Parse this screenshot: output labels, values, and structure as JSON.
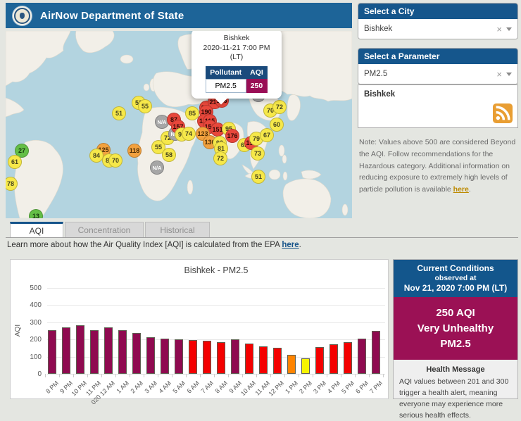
{
  "header": {
    "title": "AirNow Department of State"
  },
  "map": {
    "popup": {
      "city": "Bishkek",
      "datetime": "2020-11-21 7:00 PM",
      "tz": "(LT)",
      "col_pollutant": "Pollutant",
      "col_aqi": "AQI",
      "pollutant": "PM2.5",
      "aqi": "250"
    },
    "markers": [
      {
        "x": 161,
        "y": 117,
        "value": "51",
        "cat": "yellow"
      },
      {
        "x": 189,
        "y": 102,
        "value": "52",
        "cat": "yellow"
      },
      {
        "x": 198,
        "y": 107,
        "value": "55",
        "cat": "yellow"
      },
      {
        "x": 222,
        "y": 129,
        "value": "N/A",
        "cat": "na"
      },
      {
        "x": 239,
        "y": 126,
        "value": "87",
        "cat": "red"
      },
      {
        "x": 23,
        "y": 170,
        "value": "27",
        "cat": "green"
      },
      {
        "x": 13,
        "y": 186,
        "value": "61",
        "cat": "yellow"
      },
      {
        "x": 7,
        "y": 217,
        "value": "78",
        "cat": "yellow"
      },
      {
        "x": 43,
        "y": 263,
        "value": "13",
        "cat": "green"
      },
      {
        "x": 139,
        "y": 169,
        "value": "125",
        "cat": "orange"
      },
      {
        "x": 129,
        "y": 177,
        "value": "84",
        "cat": "yellow"
      },
      {
        "x": 147,
        "y": 184,
        "value": "89",
        "cat": "yellow"
      },
      {
        "x": 156,
        "y": 184,
        "value": "70",
        "cat": "yellow"
      },
      {
        "x": 183,
        "y": 170,
        "value": "118",
        "cat": "orange"
      },
      {
        "x": 217,
        "y": 165,
        "value": "55",
        "cat": "yellow"
      },
      {
        "x": 230,
        "y": 152,
        "value": "72",
        "cat": "yellow"
      },
      {
        "x": 241,
        "y": 146,
        "value": "N/A",
        "cat": "na"
      },
      {
        "x": 232,
        "y": 176,
        "value": "58",
        "cat": "yellow"
      },
      {
        "x": 215,
        "y": 194,
        "value": "N/A",
        "cat": "na"
      },
      {
        "x": 265,
        "y": 117,
        "value": "85",
        "cat": "yellow"
      },
      {
        "x": 245,
        "y": 136,
        "value": "157",
        "cat": "red"
      },
      {
        "x": 250,
        "y": 147,
        "value": "97",
        "cat": "yellow"
      },
      {
        "x": 260,
        "y": 146,
        "value": "74",
        "cat": "yellow"
      },
      {
        "x": 285,
        "y": 109,
        "value": "162",
        "cat": "red"
      },
      {
        "x": 297,
        "y": 101,
        "value": "215",
        "cat": "red"
      },
      {
        "x": 307,
        "y": 99,
        "value": "156",
        "cat": "red"
      },
      {
        "x": 285,
        "y": 115,
        "value": "190",
        "cat": "red"
      },
      {
        "x": 282,
        "y": 128,
        "value": "111",
        "cat": "red"
      },
      {
        "x": 290,
        "y": 128,
        "value": "115",
        "cat": "red"
      },
      {
        "x": 290,
        "y": 136,
        "value": "150",
        "cat": "red"
      },
      {
        "x": 301,
        "y": 140,
        "value": "151",
        "cat": "red"
      },
      {
        "x": 317,
        "y": 139,
        "value": "95",
        "cat": "yellow"
      },
      {
        "x": 322,
        "y": 149,
        "value": "176",
        "cat": "red"
      },
      {
        "x": 280,
        "y": 146,
        "value": "123",
        "cat": "orange"
      },
      {
        "x": 290,
        "y": 158,
        "value": "136",
        "cat": "orange"
      },
      {
        "x": 304,
        "y": 159,
        "value": "93",
        "cat": "yellow"
      },
      {
        "x": 306,
        "y": 167,
        "value": "81",
        "cat": "yellow"
      },
      {
        "x": 305,
        "y": 181,
        "value": "72",
        "cat": "yellow"
      },
      {
        "x": 339,
        "y": 162,
        "value": "61",
        "cat": "yellow"
      },
      {
        "x": 349,
        "y": 159,
        "value": "158",
        "cat": "red"
      },
      {
        "x": 356,
        "y": 153,
        "value": "79",
        "cat": "yellow"
      },
      {
        "x": 358,
        "y": 174,
        "value": "73",
        "cat": "yellow"
      },
      {
        "x": 359,
        "y": 91,
        "value": "N/A",
        "cat": "na"
      },
      {
        "x": 376,
        "y": 113,
        "value": "70",
        "cat": "yellow"
      },
      {
        "x": 389,
        "y": 108,
        "value": "72",
        "cat": "yellow"
      },
      {
        "x": 385,
        "y": 133,
        "value": "60",
        "cat": "yellow"
      },
      {
        "x": 371,
        "y": 148,
        "value": "67",
        "cat": "yellow"
      },
      {
        "x": 359,
        "y": 207,
        "value": "51",
        "cat": "yellow"
      }
    ]
  },
  "marker_palette": {
    "green": {
      "bg": "#64BE46",
      "fg": "#173A0E"
    },
    "yellow": {
      "bg": "#F6E84A",
      "fg": "#45431f"
    },
    "orange": {
      "bg": "#F2A13E",
      "fg": "#4a2d05"
    },
    "red": {
      "bg": "#E8473B",
      "fg": "#330a06"
    },
    "na": {
      "bg": "#A6A6A6",
      "fg": "#FFFFFF"
    }
  },
  "sidebar": {
    "city_panel": {
      "label": "Select a City",
      "value": "Bishkek",
      "clear": "×"
    },
    "parameter_panel": {
      "label": "Select a Parameter",
      "value": "PM2.5",
      "clear": "×"
    },
    "feed_box": {
      "title": "Bishkek"
    },
    "note": {
      "text": "Note: Values above 500 are considered Beyond the AQI. Follow recommendations for the Hazardous category. Additional information on reducing exposure to extremely high levels of particle pollution is available ",
      "link": "here",
      "suffix": "."
    }
  },
  "tabs": [
    {
      "label": "AQI",
      "active": true
    },
    {
      "label": "Concentration",
      "active": false
    },
    {
      "label": "Historical",
      "active": false
    }
  ],
  "learn_more": {
    "prefix": "Learn more about how the Air Quality Index [AQI] is calculated from the EPA ",
    "link": "here",
    "suffix": "."
  },
  "chart_data": {
    "type": "bar",
    "title": "Bishkek - PM2.5",
    "xlabel": "",
    "ylabel": "AQI",
    "ylim": [
      0,
      500
    ],
    "yticks": [
      0,
      100,
      200,
      300,
      400,
      500
    ],
    "grid": true,
    "categories": [
      "8 PM",
      "9 PM",
      "10 PM",
      "11 PM",
      "020 12 AM",
      "1 AM",
      "2 AM",
      "3 AM",
      "4 AM",
      "5 AM",
      "6 AM",
      "7 AM",
      "8 AM",
      "9 AM",
      "10 AM",
      "11 AM",
      "12 PM",
      "1 PM",
      "2 PM",
      "3 PM",
      "4 PM",
      "5 PM",
      "6 PM",
      "7 PM"
    ],
    "values": [
      256,
      272,
      284,
      254,
      270,
      254,
      236,
      213,
      206,
      202,
      195,
      192,
      185,
      202,
      178,
      158,
      152,
      112,
      89,
      155,
      174,
      185,
      203,
      250
    ],
    "bar_colors": [
      "#8F0A50",
      "#8F0A50",
      "#8F0A50",
      "#8F0A50",
      "#8F0A50",
      "#8F0A50",
      "#8F0A50",
      "#8F0A50",
      "#8F0A50",
      "#8F0A50",
      "#F40000",
      "#F40000",
      "#F40000",
      "#8F0A50",
      "#F40000",
      "#F40000",
      "#F40000",
      "#FF8400",
      "#F7F400",
      "#F40000",
      "#F40000",
      "#F40000",
      "#8F0A50",
      "#8F0A50"
    ]
  },
  "current_conditions": {
    "header_line1": "Current Conditions",
    "header_line2": "observed at",
    "header_line3": "Nov 21, 2020 7:00 PM (LT)",
    "aqi_line1": "250 AQI",
    "aqi_line2": "Very Unhealthy",
    "aqi_line3": "PM2.5",
    "health_header": "Health Message",
    "health_text": "AQI values between 201 and 300 trigger a health alert, meaning everyone may experience more serious health effects."
  },
  "colors": {
    "header_blue": "#1D6498",
    "panel_header_blue": "#15568C",
    "popup_table_blue": "#1A4A7C",
    "very_unhealthy_magenta": "#9B1155",
    "unhealthy_red": "#F40000",
    "usg_orange": "#FF8400",
    "moderate_yellow": "#F7F400",
    "ocean": "#B3D4E0",
    "land": "#F2EFE8",
    "rss_orange": "#E99E33"
  }
}
